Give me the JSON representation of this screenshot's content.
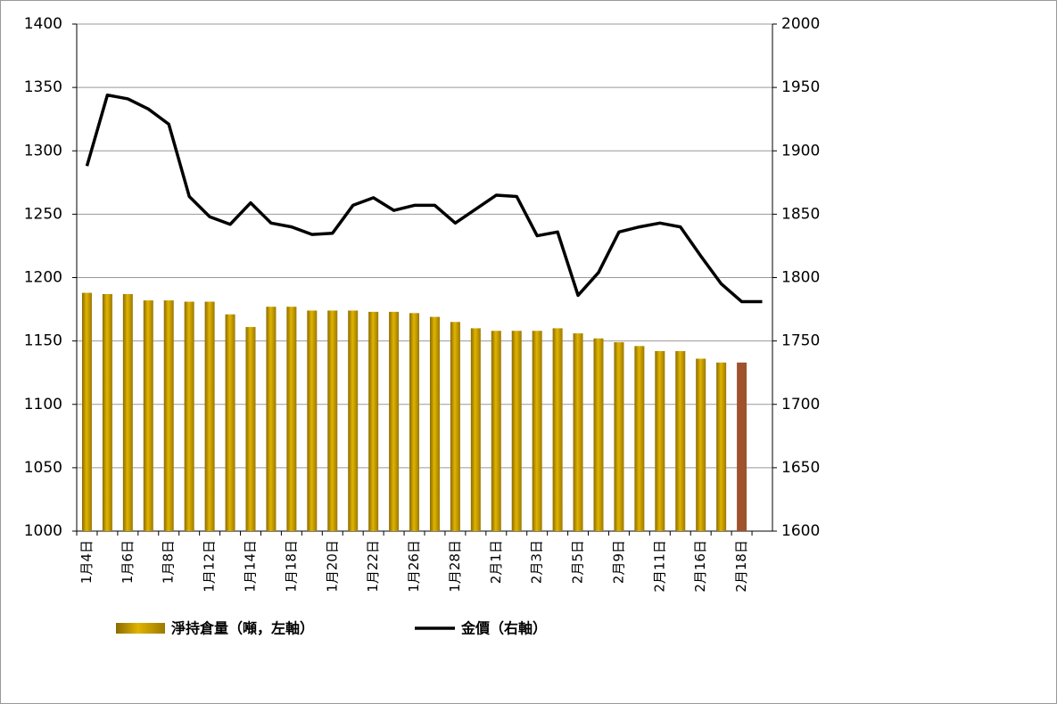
{
  "chart_data": {
    "type": "bar_line",
    "categories": [
      "1月4日",
      null,
      "1月6日",
      null,
      "1月8日",
      null,
      "1月12日",
      null,
      "1月14日",
      null,
      "1月18日",
      null,
      "1月20日",
      null,
      "1月22日",
      null,
      "1月26日",
      null,
      "1月28日",
      null,
      "2月1日",
      null,
      "2月3日",
      null,
      "2月5日",
      null,
      "2月9日",
      null,
      "2月11日",
      null,
      "2月16日",
      null,
      "2月18日",
      null
    ],
    "series": [
      {
        "name": "淨持倉量（噸，左軸）",
        "type": "bar",
        "axis": "y",
        "color": "#c9a000",
        "highlight_index": 32,
        "highlight_color": "#a0522d",
        "values": [
          1188,
          1187,
          1187,
          1182,
          1182,
          1181,
          1181,
          1171,
          1161,
          1177,
          1177,
          1174,
          1174,
          1174,
          1173,
          1173,
          1172,
          1169,
          1165,
          1160,
          1158,
          1158,
          1158,
          1160,
          1156,
          1152,
          1149,
          1146,
          1142,
          1142,
          1136,
          1133,
          1133,
          null
        ]
      },
      {
        "name": "金價（右軸）",
        "type": "line",
        "axis": "y2",
        "color": "#000000",
        "values": [
          1888,
          1944,
          1941,
          1933,
          1921,
          1864,
          1848,
          1842,
          1859,
          1843,
          1840,
          1834,
          1835,
          1857,
          1863,
          1853,
          1857,
          1857,
          1843,
          1854,
          1865,
          1864,
          1833,
          1836,
          1786,
          1804,
          1836,
          1840,
          1843,
          1840,
          1817,
          1795,
          1781,
          1781
        ]
      }
    ],
    "ylim": [
      1000,
      1400
    ],
    "yticks": [
      1000,
      1050,
      1100,
      1150,
      1200,
      1250,
      1300,
      1350,
      1400
    ],
    "y2lim": [
      1600,
      2000
    ],
    "y2ticks": [
      1600,
      1650,
      1700,
      1750,
      1800,
      1850,
      1900,
      1950,
      2000
    ],
    "grid": true
  }
}
